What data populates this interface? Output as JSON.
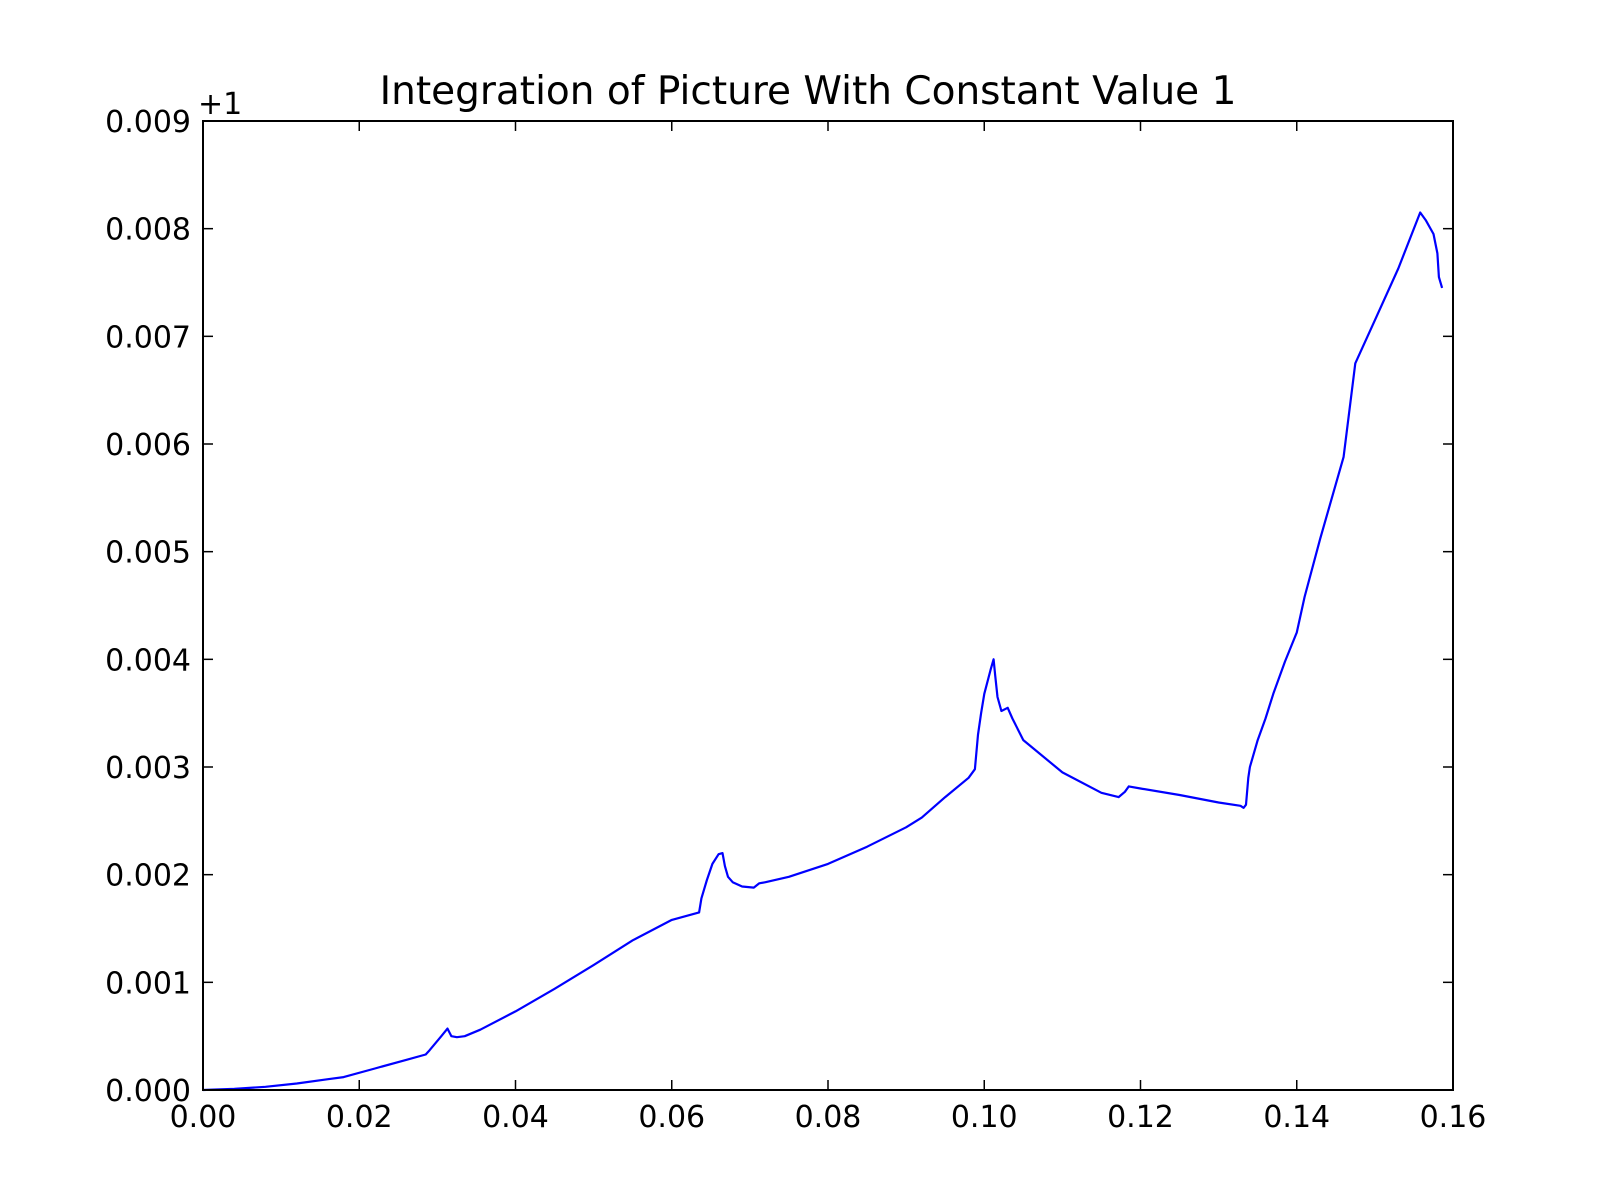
{
  "chart_data": {
    "type": "line",
    "title": "Integration of Picture With Constant Value 1",
    "xlabel": "",
    "ylabel": "",
    "y_offset_label": "+1",
    "xlim": [
      0.0,
      0.16
    ],
    "ylim": [
      0.0,
      0.009
    ],
    "x_ticks": [
      "0.00",
      "0.02",
      "0.04",
      "0.06",
      "0.08",
      "0.10",
      "0.12",
      "0.14",
      "0.16"
    ],
    "y_ticks": [
      "0.000",
      "0.001",
      "0.002",
      "0.003",
      "0.004",
      "0.005",
      "0.006",
      "0.007",
      "0.008",
      "0.009"
    ],
    "grid": false,
    "line_color": "#0000ff",
    "series": [
      {
        "x": [
          0.0,
          0.004,
          0.008,
          0.012,
          0.016,
          0.018,
          0.022,
          0.026,
          0.0285,
          0.029,
          0.0305,
          0.0313,
          0.0318,
          0.0325,
          0.0335,
          0.0355,
          0.04,
          0.045,
          0.05,
          0.055,
          0.06,
          0.0635,
          0.0638,
          0.0645,
          0.0652,
          0.066,
          0.0665,
          0.0668,
          0.0672,
          0.0678,
          0.069,
          0.0705,
          0.0712,
          0.072,
          0.075,
          0.08,
          0.085,
          0.09,
          0.092,
          0.095,
          0.098,
          0.0988,
          0.0992,
          0.0996,
          0.1,
          0.1008,
          0.1012,
          0.1014,
          0.1017,
          0.1022,
          0.103,
          0.1036,
          0.105,
          0.11,
          0.115,
          0.1172,
          0.118,
          0.1185,
          0.12,
          0.125,
          0.13,
          0.1328,
          0.1332,
          0.1335,
          0.1338,
          0.134,
          0.135,
          0.136,
          0.137,
          0.1385,
          0.14,
          0.141,
          0.143,
          0.146,
          0.1475,
          0.15,
          0.153,
          0.1558,
          0.1565,
          0.1575,
          0.158,
          0.1582,
          0.1586
        ],
        "y": [
          0.0,
          1e-05,
          3e-05,
          6e-05,
          0.0001,
          0.00012,
          0.0002,
          0.00028,
          0.00033,
          0.00037,
          0.0005,
          0.00057,
          0.0005,
          0.00049,
          0.0005,
          0.00056,
          0.00073,
          0.00094,
          0.00116,
          0.00139,
          0.00158,
          0.00165,
          0.00178,
          0.00195,
          0.0021,
          0.00219,
          0.0022,
          0.00208,
          0.00198,
          0.00193,
          0.00189,
          0.00188,
          0.00192,
          0.00193,
          0.00198,
          0.0021,
          0.00226,
          0.00244,
          0.00253,
          0.00272,
          0.0029,
          0.00298,
          0.0033,
          0.0035,
          0.00368,
          0.0039,
          0.004,
          0.00385,
          0.00365,
          0.00352,
          0.00355,
          0.00345,
          0.00325,
          0.00295,
          0.00276,
          0.00272,
          0.00277,
          0.00282,
          0.0028,
          0.00274,
          0.00267,
          0.00264,
          0.00262,
          0.00265,
          0.0029,
          0.003,
          0.00325,
          0.00345,
          0.00368,
          0.00398,
          0.00425,
          0.00458,
          0.00512,
          0.00588,
          0.00675,
          0.00715,
          0.00763,
          0.00815,
          0.00808,
          0.00795,
          0.00777,
          0.00755,
          0.00745
        ]
      }
    ]
  }
}
